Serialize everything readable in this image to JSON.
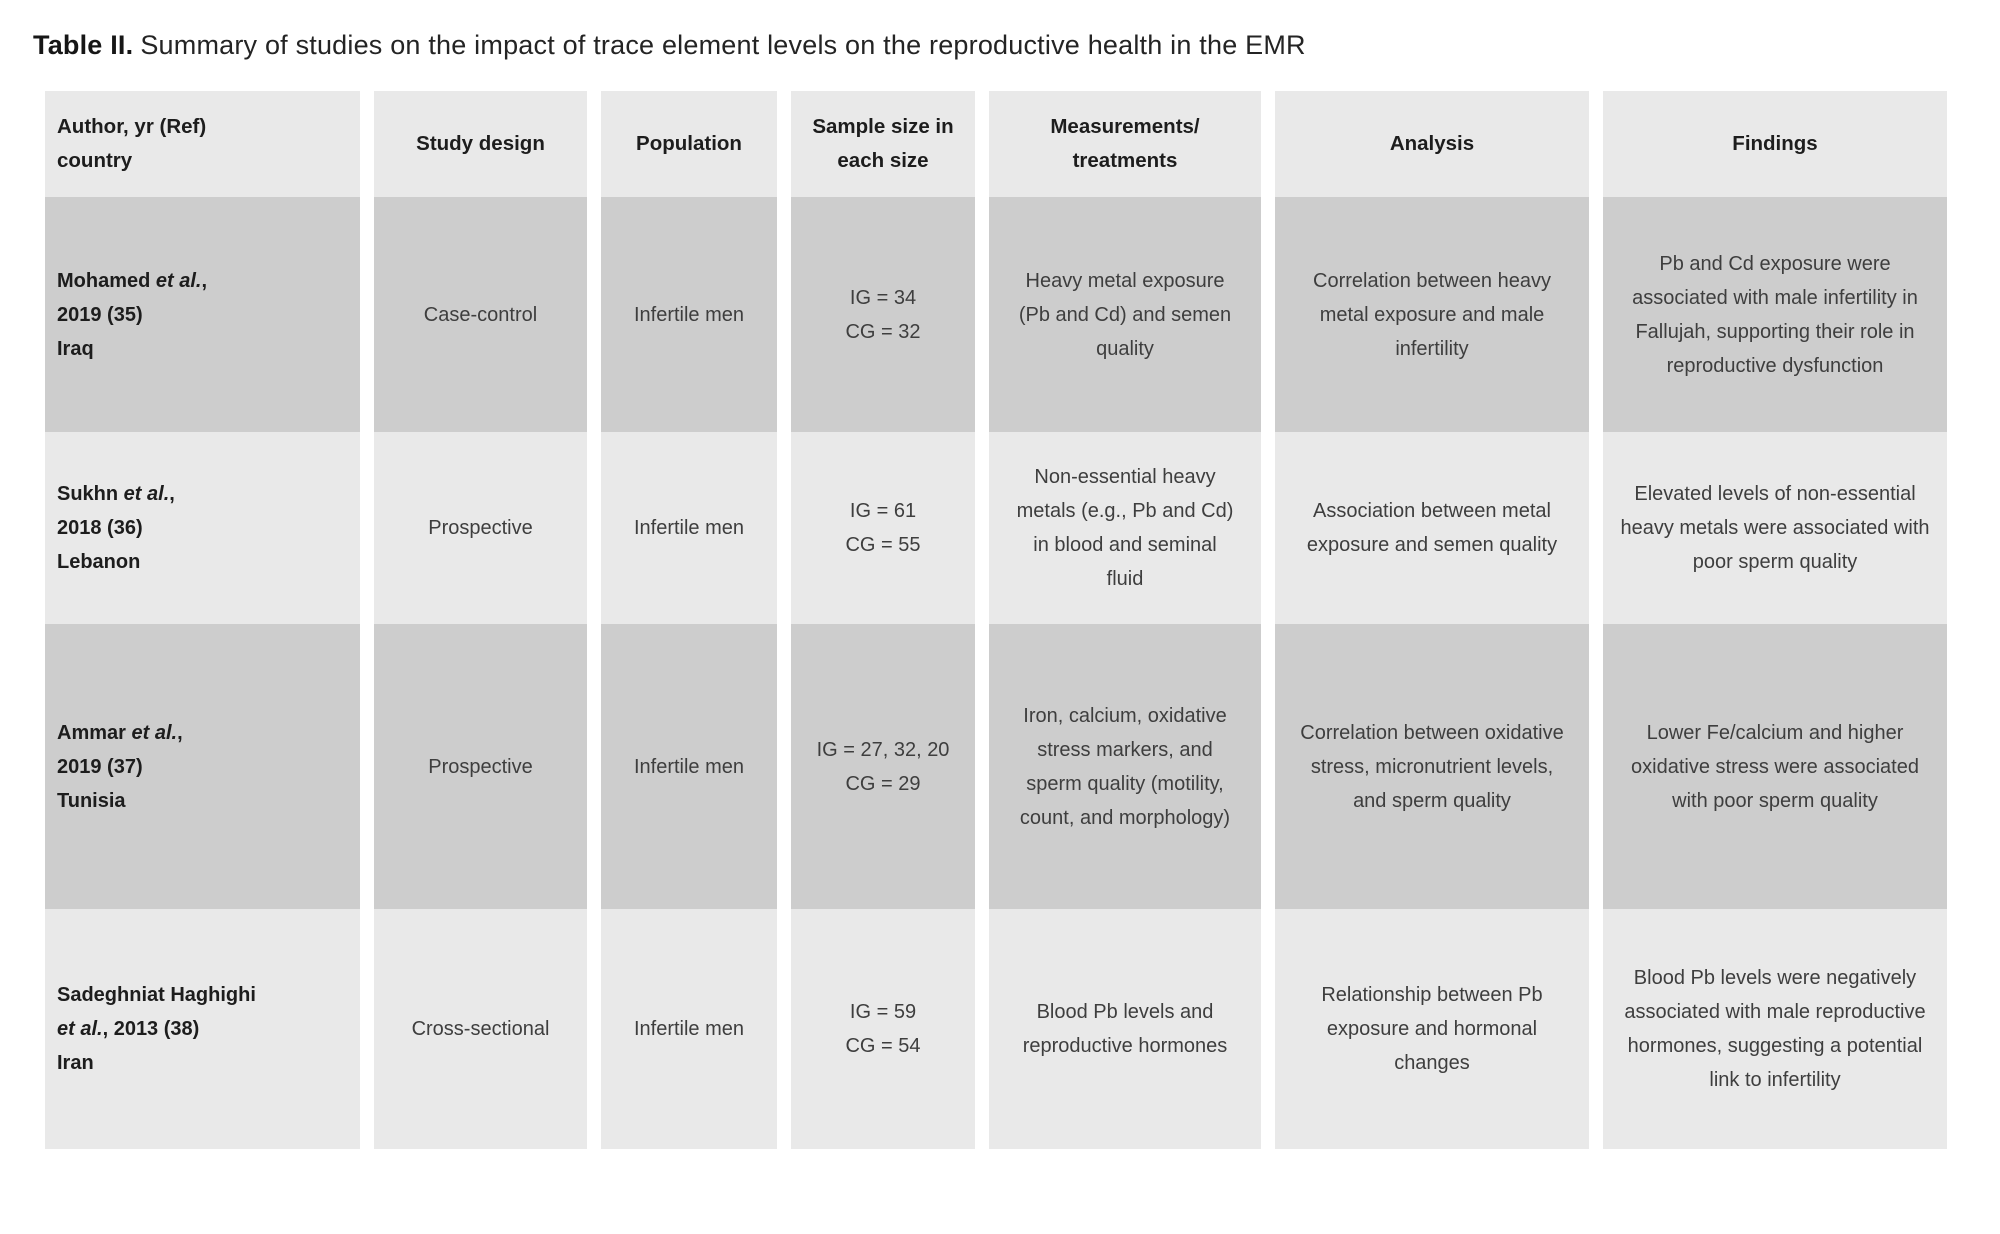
{
  "caption": {
    "label": "Table II.",
    "text": "Summary of studies on the impact of trace element levels on the reproductive health in the EMR"
  },
  "colors": {
    "row_dark": "#cdcdcd",
    "row_light": "#e9e9e9",
    "page_bg": "#ffffff"
  },
  "table": {
    "columns": [
      {
        "key": "author",
        "lines": [
          "Author, yr (Ref)",
          "country"
        ]
      },
      {
        "key": "study-design",
        "lines": [
          "Study design"
        ]
      },
      {
        "key": "population",
        "lines": [
          "Population"
        ]
      },
      {
        "key": "sample-size",
        "lines": [
          "Sample size in",
          "each size"
        ]
      },
      {
        "key": "measurements",
        "lines": [
          "Measurements/",
          "treatments"
        ]
      },
      {
        "key": "analysis",
        "lines": [
          "Analysis"
        ]
      },
      {
        "key": "findings",
        "lines": [
          "Findings"
        ]
      }
    ],
    "rows": [
      {
        "author_lines": [
          [
            {
              "text": "Mohamed "
            },
            {
              "text": "et al.",
              "italic": true
            },
            {
              "text": ","
            }
          ],
          [
            {
              "text": "2019 (35)"
            }
          ],
          [
            {
              "text": "Iraq"
            }
          ]
        ],
        "study_design": "Case-control",
        "population": "Infertile men",
        "sample_size_lines": [
          "IG = 34",
          "CG = 32"
        ],
        "measurements": "Heavy metal exposure (Pb and Cd) and semen quality",
        "analysis": "Correlation between heavy metal exposure and male infertility",
        "findings": "Pb and Cd exposure were associated with male infertility in Fallujah, supporting their role in reproductive dysfunction"
      },
      {
        "author_lines": [
          [
            {
              "text": "Sukhn "
            },
            {
              "text": "et al.",
              "italic": true
            },
            {
              "text": ","
            }
          ],
          [
            {
              "text": "2018 (36)"
            }
          ],
          [
            {
              "text": "Lebanon"
            }
          ]
        ],
        "study_design": "Prospective",
        "population": "Infertile men",
        "sample_size_lines": [
          "IG = 61",
          "CG = 55"
        ],
        "measurements": "Non-essential heavy metals (e.g., Pb and Cd) in blood and seminal fluid",
        "analysis": "Association between metal exposure and semen quality",
        "findings": "Elevated levels of non-essential heavy metals were associated with poor sperm quality"
      },
      {
        "author_lines": [
          [
            {
              "text": "Ammar "
            },
            {
              "text": "et al.",
              "italic": true
            },
            {
              "text": ","
            }
          ],
          [
            {
              "text": "2019 (37)"
            }
          ],
          [
            {
              "text": "Tunisia"
            }
          ]
        ],
        "study_design": "Prospective",
        "population": "Infertile men",
        "sample_size_lines": [
          "IG = 27, 32, 20",
          "CG = 29"
        ],
        "measurements": "Iron, calcium, oxidative stress markers, and sperm quality (motility, count, and morphology)",
        "analysis": "Correlation between oxidative stress, micronutrient levels, and sperm quality",
        "findings": "Lower Fe/calcium and higher oxidative stress were associated with poor sperm quality"
      },
      {
        "author_lines": [
          [
            {
              "text": "Sadeghniat Haghighi"
            }
          ],
          [
            {
              "text": "et al.",
              "italic": true
            },
            {
              "text": ", 2013 (38)"
            }
          ],
          [
            {
              "text": "Iran"
            }
          ]
        ],
        "study_design": "Cross-sectional",
        "population": "Infertile men",
        "sample_size_lines": [
          "IG = 59",
          "CG = 54"
        ],
        "measurements": "Blood Pb levels and reproductive hormones",
        "analysis": "Relationship between Pb exposure and hormonal changes",
        "findings": "Blood Pb levels were negatively associated with male reproductive hormones, suggesting a potential link to infertility"
      }
    ]
  }
}
